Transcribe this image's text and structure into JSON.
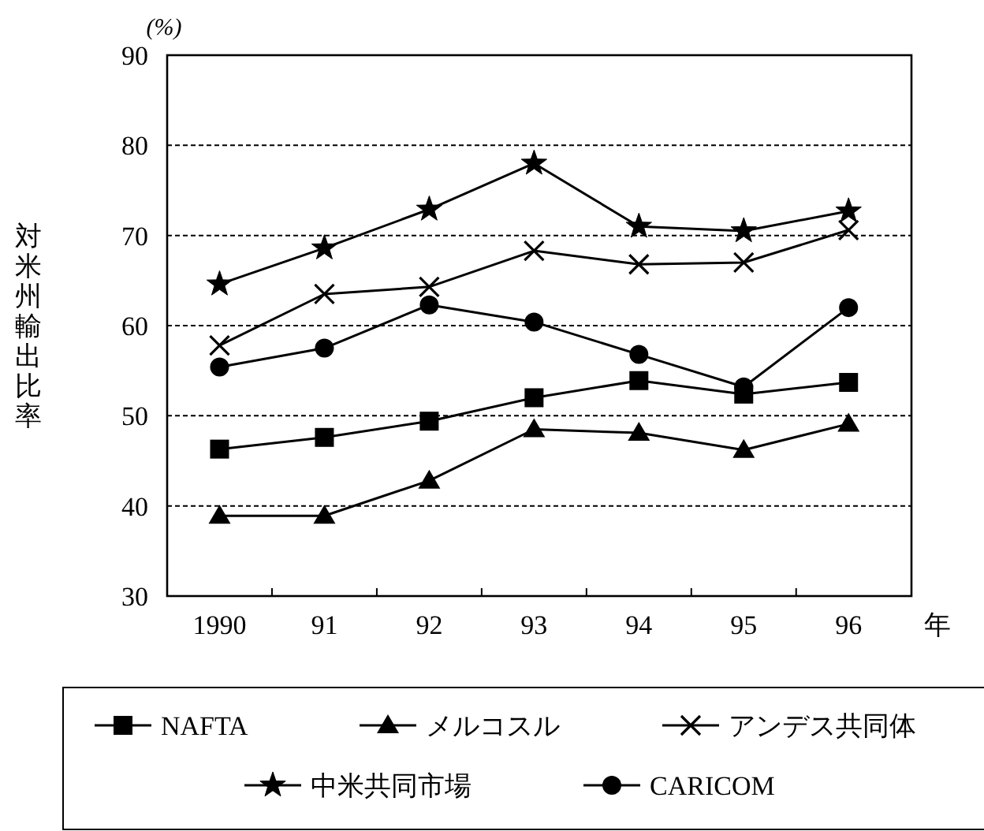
{
  "chart_data": {
    "type": "line",
    "ylabel": "対米州輸出比率",
    "xlabel": "年",
    "annotations": [
      "(%)"
    ],
    "categories": [
      "1990",
      "91",
      "92",
      "93",
      "94",
      "95",
      "96"
    ],
    "ylim": [
      30,
      90
    ],
    "yticks": [
      30,
      40,
      50,
      60,
      70,
      80,
      90
    ],
    "grid": "y",
    "legend": "bottom",
    "series": [
      {
        "name": "NAFTA",
        "color": "#000000",
        "marker": "square",
        "values": [
          46.3,
          47.6,
          49.4,
          52.0,
          53.9,
          52.4,
          53.7
        ]
      },
      {
        "name": "メルコスル",
        "color": "#000000",
        "marker": "triangle",
        "values": [
          38.9,
          38.9,
          42.8,
          48.5,
          48.1,
          46.2,
          49.1
        ]
      },
      {
        "name": "アンデス共同体",
        "color": "#000000",
        "marker": "cross",
        "values": [
          57.8,
          63.5,
          64.3,
          68.3,
          66.8,
          67.0,
          70.6
        ]
      },
      {
        "name": "中米共同市場",
        "color": "#000000",
        "marker": "star",
        "values": [
          64.6,
          68.6,
          72.9,
          78.0,
          71.0,
          70.5,
          72.7
        ]
      },
      {
        "name": "CARICOM",
        "color": "#000000",
        "marker": "circle",
        "values": [
          55.4,
          57.5,
          62.3,
          60.4,
          56.8,
          53.2,
          62.0
        ]
      }
    ]
  }
}
